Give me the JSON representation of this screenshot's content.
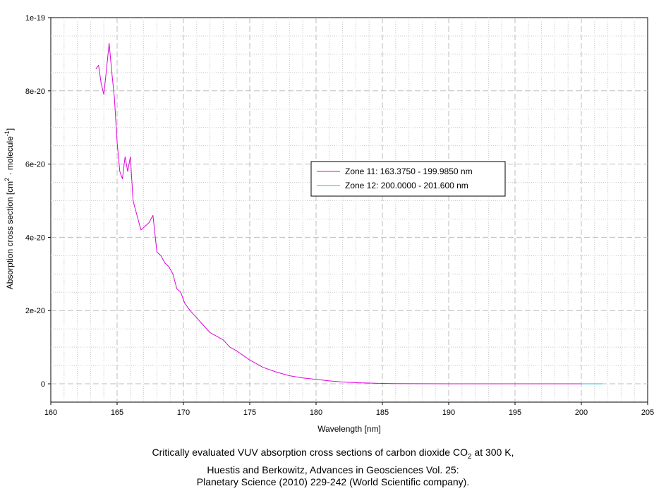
{
  "chart_data": {
    "type": "line",
    "xlabel": "Wavelength [nm]",
    "ylabel_parts": [
      "Absorption cross section [cm",
      "2",
      " · molecule",
      "-1",
      "]"
    ],
    "xlim": [
      160,
      205
    ],
    "ylim": [
      -5e-21,
      1e-19
    ],
    "x_ticks": [
      160,
      165,
      170,
      175,
      180,
      185,
      190,
      195,
      200,
      205
    ],
    "y_ticks": [
      {
        "value": 0,
        "label": "0"
      },
      {
        "value": 2e-20,
        "label": "2e-20"
      },
      {
        "value": 4e-20,
        "label": "4e-20"
      },
      {
        "value": 6e-20,
        "label": "6e-20"
      },
      {
        "value": 8e-20,
        "label": "8e-20"
      },
      {
        "value": 1e-19,
        "label": "1e-19"
      }
    ],
    "grid": true,
    "legend_position": "center-right",
    "series": [
      {
        "name": "Zone 11: 163.3750 - 199.9850 nm",
        "color": "#e000e0",
        "x": [
          163.4,
          163.6,
          163.8,
          164.0,
          164.2,
          164.4,
          164.6,
          164.8,
          165.0,
          165.2,
          165.4,
          165.6,
          165.8,
          166.0,
          166.2,
          166.5,
          166.8,
          167.1,
          167.4,
          167.7,
          168.0,
          168.3,
          168.6,
          168.9,
          169.2,
          169.5,
          169.8,
          170.1,
          170.5,
          171.0,
          171.5,
          172.0,
          172.5,
          173.0,
          173.5,
          174.0,
          175.0,
          176.0,
          177.0,
          178.0,
          179.0,
          180.0,
          181.0,
          182.0,
          183.0,
          184.0,
          185.0,
          186.0,
          188.0,
          190.0,
          195.0,
          199.985
        ],
        "y": [
          8.6e-20,
          8.7e-20,
          8.2e-20,
          7.9e-20,
          8.6e-20,
          9.3e-20,
          8.5e-20,
          7.8e-20,
          6.6e-20,
          5.8e-20,
          5.6e-20,
          6.2e-20,
          5.8e-20,
          6.2e-20,
          5e-20,
          4.6e-20,
          4.2e-20,
          4.3e-20,
          4.4e-20,
          4.6e-20,
          3.6e-20,
          3.5e-20,
          3.3e-20,
          3.2e-20,
          3e-20,
          2.6e-20,
          2.5e-20,
          2.2e-20,
          2e-20,
          1.8e-20,
          1.6e-20,
          1.4e-20,
          1.3e-20,
          1.2e-20,
          1e-20,
          9e-21,
          6.5e-21,
          4.5e-21,
          3.2e-21,
          2.2e-21,
          1.6e-21,
          1.2e-21,
          8e-22,
          5e-22,
          3e-22,
          2e-22,
          1e-22,
          5e-23,
          2e-23,
          1e-23,
          5e-24,
          3e-24
        ]
      },
      {
        "name": "Zone 12: 200.0000 - 201.600 nm",
        "color": "#00c8d0",
        "x": [
          200.0,
          200.8,
          201.6
        ],
        "y": [
          2e-24,
          2e-24,
          1e-24
        ]
      }
    ]
  },
  "caption": {
    "line1_pre": "Critically evaluated VUV absorption cross sections of carbon dioxide CO",
    "line1_sub": "2",
    "line1_post": " at 300 K,",
    "line2": "Huestis and Berkowitz, Advances in Geosciences Vol. 25:",
    "line3": "Planetary Science (2010) 229-242 (World Scientific company)."
  }
}
